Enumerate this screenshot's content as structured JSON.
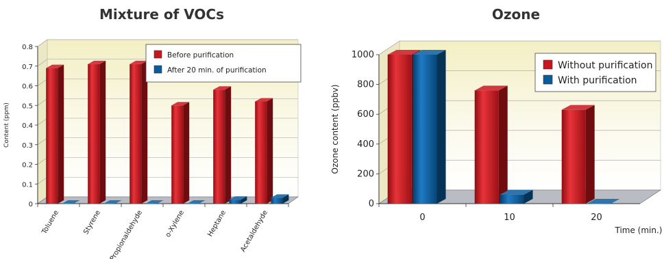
{
  "chart_data": [
    {
      "type": "bar",
      "title": "Mixture of VOCs",
      "ylabel": "Content (ppm)",
      "xlabel": "",
      "ylim": [
        0,
        0.8
      ],
      "yticks": [
        "0",
        "0.1",
        "0.2",
        "0.3",
        "0.4",
        "0.5",
        "0.6",
        "0.7",
        "0.8"
      ],
      "categories": [
        "Toluene",
        "Styrene",
        "Propionaldehyde",
        "o-Xylene",
        "Heptane",
        "Acetaldehyde"
      ],
      "series": [
        {
          "name": "Before purification",
          "color": "#c8161d",
          "values": [
            0.69,
            0.71,
            0.71,
            0.5,
            0.58,
            0.52
          ]
        },
        {
          "name": "After 20 min. of purification",
          "color": "#0a5b9c",
          "values": [
            0.0,
            0.0,
            0.0,
            0.0,
            0.02,
            0.03
          ]
        }
      ],
      "legend": "top-right",
      "grid": true
    },
    {
      "type": "bar",
      "title": "Ozone",
      "ylabel": "Ozone content (ppbv)",
      "xlabel": "Time (min.)",
      "ylim": [
        0,
        1000
      ],
      "yticks": [
        "0",
        "200",
        "400",
        "600",
        "800",
        "1000"
      ],
      "categories": [
        "0",
        "10",
        "20"
      ],
      "series": [
        {
          "name": "Without purification",
          "color": "#c8161d",
          "values": [
            1000,
            760,
            630
          ]
        },
        {
          "name": "With purification",
          "color": "#0a5b9c",
          "values": [
            1000,
            60,
            0
          ]
        }
      ],
      "legend": "top-right",
      "grid": true
    }
  ]
}
